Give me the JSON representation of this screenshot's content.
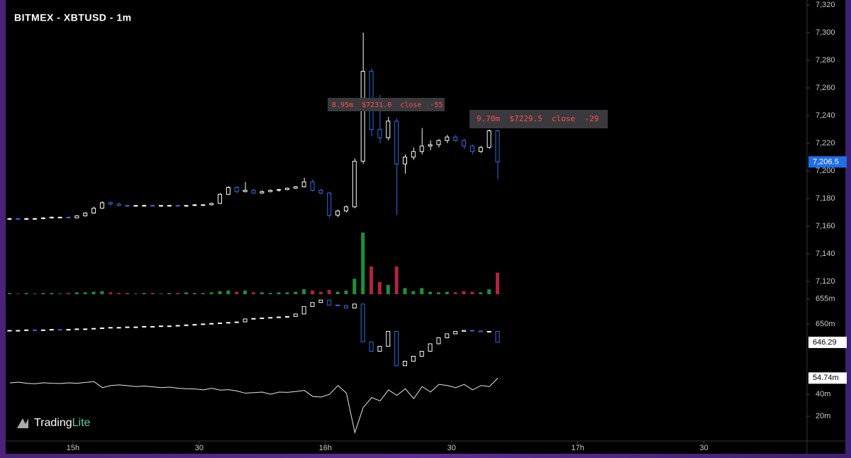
{
  "chart_data": [
    {
      "type": "candlestick",
      "title": "BITMEX - XBTUSD - 1m",
      "x": [
        1,
        3,
        5,
        7,
        9,
        11,
        13,
        15,
        17,
        19,
        21,
        23,
        25,
        27,
        29,
        31,
        33,
        35,
        37,
        39,
        41,
        43,
        45,
        47,
        49,
        51,
        53,
        55,
        57,
        59,
        61,
        63,
        65,
        67,
        69,
        71,
        73,
        75,
        77,
        79,
        81,
        83,
        85,
        87,
        89,
        91,
        93,
        95,
        97,
        99,
        101,
        103,
        105,
        107,
        109,
        111,
        113,
        115,
        117
      ],
      "open": [
        7165,
        7165.5,
        7165,
        7165.5,
        7165.5,
        7166,
        7166.5,
        7166.5,
        7166,
        7167.5,
        7169.5,
        7173,
        7177,
        7176,
        7175,
        7174.5,
        7175,
        7175,
        7174.5,
        7175,
        7175,
        7174.5,
        7175,
        7175.5,
        7175.5,
        7176.5,
        7183,
        7188,
        7185,
        7186,
        7184,
        7185,
        7186,
        7186.5,
        7187.5,
        7188.5,
        7192,
        7186,
        7184,
        7168,
        7171,
        7174,
        7207,
        7272,
        7230,
        7224,
        7236,
        7205,
        7210,
        7214,
        7218,
        7219,
        7222,
        7224.5,
        7222,
        7218,
        7214,
        7217,
        7229
      ],
      "high": [
        7166,
        7166,
        7166,
        7166,
        7166.5,
        7167,
        7167,
        7167,
        7168,
        7170,
        7174,
        7178,
        7178,
        7177,
        7175.5,
        7175,
        7175.5,
        7175.5,
        7175,
        7175.5,
        7175.5,
        7175,
        7176,
        7176,
        7177,
        7184,
        7189,
        7189,
        7192,
        7187,
        7186,
        7186.5,
        7187,
        7188,
        7189,
        7195,
        7194,
        7187,
        7185,
        7172,
        7175,
        7209,
        7300,
        7274,
        7255,
        7239,
        7238,
        7212,
        7217,
        7231,
        7222,
        7223,
        7226,
        7226,
        7223,
        7219,
        7218,
        7230,
        7230
      ],
      "low": [
        7164.5,
        7165,
        7164.5,
        7165,
        7165,
        7165.5,
        7166,
        7166,
        7166,
        7167,
        7169,
        7172.5,
        7175,
        7174.5,
        7174,
        7174,
        7174.5,
        7174.5,
        7174,
        7174.5,
        7174.5,
        7174,
        7174.5,
        7175,
        7175,
        7176,
        7182.5,
        7184,
        7184.5,
        7183.5,
        7183.5,
        7184.5,
        7185,
        7186,
        7187,
        7188,
        7185,
        7183,
        7166,
        7166.5,
        7170,
        7173,
        7205,
        7225,
        7220,
        7222,
        7168,
        7198,
        7208,
        7212,
        7215,
        7217,
        7220,
        7221,
        7216,
        7212,
        7213,
        7216,
        7194
      ],
      "close": [
        7165.5,
        7165,
        7165.5,
        7165.5,
        7166,
        7166.5,
        7166.5,
        7166,
        7167.5,
        7169.5,
        7173,
        7177,
        7176,
        7175,
        7174.5,
        7175,
        7175,
        7174.5,
        7175,
        7175,
        7174.5,
        7175,
        7175.5,
        7175.5,
        7176.5,
        7183,
        7188,
        7185,
        7186,
        7184,
        7185,
        7186,
        7186.5,
        7187.5,
        7188.5,
        7192,
        7186,
        7184,
        7168,
        7171,
        7174,
        7207,
        7272,
        7230,
        7224,
        7236,
        7205,
        7210,
        7214,
        7218,
        7219,
        7222,
        7224.5,
        7222,
        7218,
        7214,
        7217,
        7229,
        7206.5
      ],
      "up_color": "#ffffff",
      "down_color": "#2f6fe0",
      "xlim": [
        0,
        190.5
      ],
      "xticks": [
        {
          "value": 16,
          "label": "15h"
        },
        {
          "value": 46,
          "label": "30"
        },
        {
          "value": 76,
          "label": "16h"
        },
        {
          "value": 106,
          "label": "30"
        },
        {
          "value": 136,
          "label": "17h"
        },
        {
          "value": 166,
          "label": "30"
        }
      ],
      "ylim": [
        7110.8,
        7323.6
      ],
      "yticks": [
        {
          "value": 7120,
          "label": "7,120"
        },
        {
          "value": 7140,
          "label": "7,140"
        },
        {
          "value": 7160,
          "label": "7,160"
        },
        {
          "value": 7180,
          "label": "7,180"
        },
        {
          "value": 7200,
          "label": "7,200"
        },
        {
          "value": 7220,
          "label": "7,220"
        },
        {
          "value": 7240,
          "label": "7,240"
        },
        {
          "value": 7260,
          "label": "7,260"
        },
        {
          "value": 7280,
          "label": "7,280"
        },
        {
          "value": 7300,
          "label": "7,300"
        },
        {
          "value": 7320,
          "label": "7,320"
        }
      ],
      "last_price": {
        "value": 7206.5,
        "label": "7,206.5"
      },
      "annotations": [
        "8.95m  $7231.0  close  -55",
        "9.70m  $7229.5  close  -29"
      ]
    },
    {
      "type": "bar",
      "values": [
        2,
        1,
        2,
        1,
        2,
        2,
        1,
        2,
        3,
        3,
        4,
        5,
        3,
        2,
        2,
        1,
        2,
        2,
        1,
        2,
        2,
        3,
        2,
        2,
        3,
        5,
        6,
        4,
        6,
        3,
        3,
        2,
        3,
        3,
        4,
        8,
        6,
        4,
        7,
        4,
        6,
        25,
        100,
        45,
        20,
        15,
        45,
        10,
        5,
        10,
        4,
        3,
        4,
        3,
        5,
        4,
        3,
        8,
        35
      ],
      "ylim": [
        0,
        100
      ],
      "up_color": "#1f8f3a",
      "down_color": "#b0243f"
    },
    {
      "type": "steps",
      "values": [
        648.7,
        648.7,
        648.8,
        648.7,
        648.8,
        648.9,
        648.8,
        648.9,
        649.0,
        649.0,
        649.1,
        649.2,
        649.3,
        649.3,
        649.4,
        649.4,
        649.5,
        649.5,
        649.6,
        649.6,
        649.7,
        649.8,
        649.9,
        650.0,
        650.1,
        650.2,
        650.3,
        650.4,
        651.0,
        651.1,
        651.2,
        651.3,
        651.4,
        651.5,
        652.0,
        653.5,
        654.3,
        654.8,
        653.8,
        653.7,
        653.2,
        654.0,
        646.4,
        644.5,
        645.5,
        648.5,
        641.6,
        642.5,
        643.5,
        644.5,
        646.0,
        647.2,
        648.0,
        648.5,
        648.7,
        648.6,
        648.4,
        648.5,
        646.29
      ],
      "ylim": [
        641,
        656.4
      ],
      "yticks": [
        {
          "value": 650,
          "label": "650m"
        },
        {
          "value": 655,
          "label": "655m"
        }
      ],
      "last_value": {
        "value": 646.29,
        "label": "646.29"
      },
      "up_color": "#ffffff",
      "down_color": "#2f6fe0"
    },
    {
      "type": "line",
      "values": [
        50.3,
        51,
        50,
        49.6,
        50.5,
        50,
        49.8,
        50.4,
        50,
        50.8,
        51.5,
        46,
        48,
        48.5,
        47.8,
        47,
        47.5,
        46.8,
        46,
        46.5,
        45.5,
        45,
        44.8,
        44,
        45.5,
        43.8,
        44.2,
        43,
        41,
        41.5,
        42,
        40,
        42,
        41.8,
        42.5,
        43.5,
        38,
        37.5,
        40,
        48,
        41,
        5.2,
        28,
        37,
        34,
        44,
        39,
        45,
        36,
        47,
        42,
        49,
        48,
        46,
        49,
        44,
        48,
        47,
        54.74
      ],
      "ylim": [
        -2.5,
        62
      ],
      "yticks": [
        {
          "value": 20,
          "label": "20m"
        },
        {
          "value": 40,
          "label": "40m"
        }
      ],
      "last_value": {
        "value": 54.74,
        "label": "54.74m"
      },
      "color": "#e8e8e8"
    }
  ],
  "logo": {
    "main": "Trading",
    "accent": "Lite"
  }
}
